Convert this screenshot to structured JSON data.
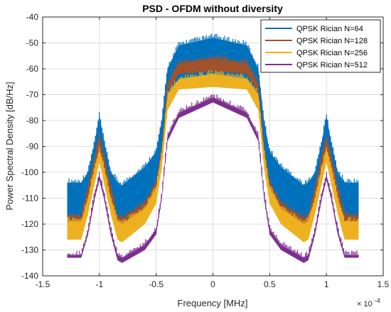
{
  "chart_data": {
    "type": "line",
    "title": "PSD - OFDM without diversity",
    "xlabel": "Frequency [MHz]",
    "ylabel": "Power Spectral Density [dB/Hz]",
    "x_exponent_label": "× 10",
    "x_exponent_power": "-4",
    "xlim": [
      -1.5,
      1.5
    ],
    "ylim": [
      -140,
      -40
    ],
    "xticks": [
      -1.5,
      -1,
      -0.5,
      0,
      0.5,
      1,
      1.5
    ],
    "xtick_labels": [
      "-1.5",
      "-1",
      "-0.5",
      "0",
      "0.5",
      "1",
      "1.5"
    ],
    "yticks": [
      -140,
      -130,
      -120,
      -110,
      -100,
      -90,
      -80,
      -70,
      -60,
      -50,
      -40
    ],
    "ytick_labels": [
      "-140",
      "-130",
      "-120",
      "-110",
      "-100",
      "-90",
      "-80",
      "-70",
      "-60",
      "-50",
      "-40"
    ],
    "grid": true,
    "legend_position": "top-right",
    "x": [
      -1.28,
      -1.16,
      -1.1,
      -1.04,
      -1.0,
      -0.96,
      -0.9,
      -0.84,
      -0.8,
      -0.6,
      -0.5,
      -0.45,
      -0.4,
      -0.3,
      0,
      0.3,
      0.4,
      0.45,
      0.5,
      0.6,
      0.8,
      0.84,
      0.9,
      0.96,
      1.0,
      1.04,
      1.1,
      1.16,
      1.28
    ],
    "series": [
      {
        "name": "QPSK Rician N=64",
        "color": "#0072BD",
        "upper": [
          -104,
          -104,
          -100,
          -88,
          -78,
          -88,
          -100,
          -104,
          -105,
          -98,
          -92,
          -80,
          -60,
          -51,
          -48,
          -51,
          -60,
          -80,
          -92,
          -98,
          -105,
          -104,
          -100,
          -88,
          -78,
          -88,
          -100,
          -104,
          -104
        ],
        "lower": [
          -118,
          -118,
          -112,
          -100,
          -92,
          -100,
          -112,
          -118,
          -119,
          -112,
          -105,
          -92,
          -72,
          -64,
          -62,
          -64,
          -72,
          -92,
          -105,
          -112,
          -119,
          -118,
          -112,
          -100,
          -92,
          -100,
          -112,
          -118,
          -118
        ]
      },
      {
        "name": "QPSK Rician N=128",
        "color": "#A0522D",
        "upper": [
          -117,
          -117,
          -106,
          -94,
          -86,
          -94,
          -106,
          -117,
          -118,
          -112,
          -104,
          -90,
          -66,
          -58,
          -56,
          -58,
          -66,
          -90,
          -104,
          -112,
          -118,
          -117,
          -106,
          -94,
          -86,
          -94,
          -106,
          -117,
          -117
        ],
        "lower": [
          -120,
          -120,
          -110,
          -98,
          -91,
          -98,
          -110,
          -120,
          -121,
          -115,
          -107,
          -93,
          -69,
          -62,
          -61,
          -62,
          -69,
          -93,
          -107,
          -115,
          -121,
          -120,
          -110,
          -98,
          -91,
          -98,
          -110,
          -120,
          -120
        ]
      },
      {
        "name": "QPSK Rician N=256",
        "color": "#EDB120",
        "upper": [
          -119,
          -119,
          -110,
          -98,
          -91,
          -98,
          -110,
          -119,
          -120,
          -114,
          -106,
          -92,
          -70,
          -64,
          -62,
          -64,
          -70,
          -92,
          -106,
          -114,
          -120,
          -119,
          -110,
          -98,
          -91,
          -98,
          -110,
          -119,
          -119
        ],
        "lower": [
          -126,
          -126,
          -116,
          -104,
          -96,
          -104,
          -116,
          -126,
          -127,
          -120,
          -112,
          -98,
          -76,
          -68,
          -67,
          -68,
          -76,
          -98,
          -112,
          -120,
          -127,
          -126,
          -116,
          -104,
          -96,
          -104,
          -116,
          -126,
          -126
        ]
      },
      {
        "name": "QPSK Rician N=512",
        "color": "#7E2F8E",
        "upper": [
          -132,
          -132,
          -122,
          -108,
          -101,
          -108,
          -122,
          -132,
          -133,
          -128,
          -122,
          -108,
          -86,
          -77,
          -71,
          -77,
          -86,
          -108,
          -122,
          -128,
          -133,
          -132,
          -122,
          -108,
          -101,
          -108,
          -122,
          -132,
          -132
        ],
        "lower": [
          -133,
          -133,
          -124,
          -110,
          -103,
          -110,
          -124,
          -134,
          -135,
          -130,
          -124,
          -110,
          -88,
          -79,
          -73,
          -79,
          -88,
          -110,
          -124,
          -130,
          -135,
          -134,
          -124,
          -110,
          -103,
          -110,
          -124,
          -133,
          -133
        ]
      }
    ]
  }
}
